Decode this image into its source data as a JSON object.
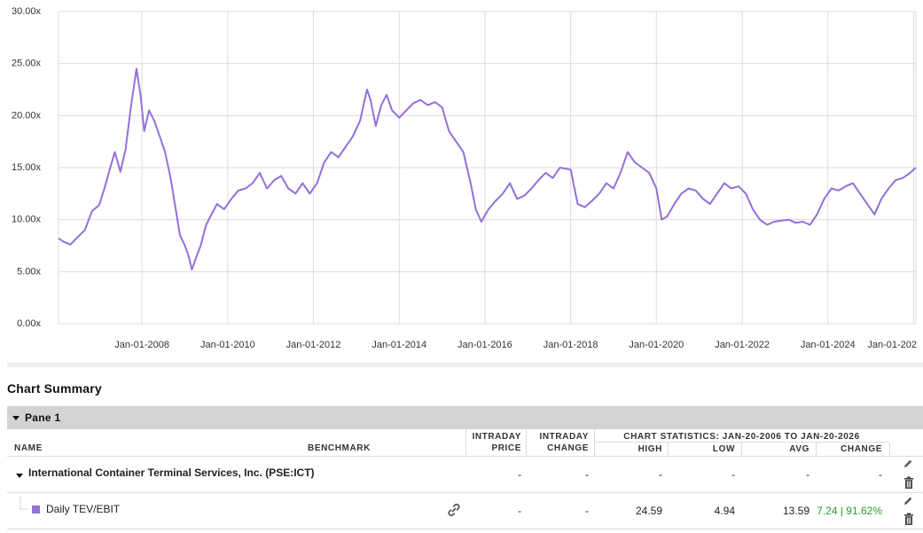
{
  "chart_data": {
    "type": "line",
    "y_ticks": [
      "0.00x",
      "5.00x",
      "10.00x",
      "15.00x",
      "20.00x",
      "25.00x",
      "30.00x"
    ],
    "ylim": [
      0,
      30
    ],
    "x_ticks": [
      "Jan-01-2008",
      "Jan-01-2010",
      "Jan-01-2012",
      "Jan-01-2014",
      "Jan-01-2016",
      "Jan-01-2018",
      "Jan-01-2020",
      "Jan-01-2022",
      "Jan-01-2024",
      "Jan-01-202"
    ],
    "xlim": [
      "2006-01-20",
      "2026-01-20"
    ],
    "grid": true,
    "series": [
      {
        "color": "#9370db",
        "points": [
          [
            "2006-01-20",
            8.2
          ],
          [
            "2006-03-01",
            7.9
          ],
          [
            "2006-05-01",
            7.6
          ],
          [
            "2006-07-01",
            8.3
          ],
          [
            "2006-09-01",
            9.0
          ],
          [
            "2006-11-01",
            10.8
          ],
          [
            "2007-01-01",
            11.4
          ],
          [
            "2007-02-15",
            13.0
          ],
          [
            "2007-04-01",
            14.8
          ],
          [
            "2007-05-15",
            16.5
          ],
          [
            "2007-07-01",
            14.6
          ],
          [
            "2007-08-15",
            16.8
          ],
          [
            "2007-10-01",
            21.0
          ],
          [
            "2007-11-15",
            24.5
          ],
          [
            "2007-12-20",
            22.0
          ],
          [
            "2008-01-20",
            18.5
          ],
          [
            "2008-03-01",
            20.5
          ],
          [
            "2008-04-15",
            19.5
          ],
          [
            "2008-06-01",
            18.0
          ],
          [
            "2008-07-15",
            16.5
          ],
          [
            "2008-09-01",
            14.0
          ],
          [
            "2008-10-15",
            11.0
          ],
          [
            "2008-11-20",
            8.5
          ],
          [
            "2009-01-01",
            7.5
          ],
          [
            "2009-02-01",
            6.5
          ],
          [
            "2009-03-01",
            5.2
          ],
          [
            "2009-04-01",
            6.2
          ],
          [
            "2009-05-15",
            7.5
          ],
          [
            "2009-07-01",
            9.5
          ],
          [
            "2009-08-15",
            10.5
          ],
          [
            "2009-10-01",
            11.5
          ],
          [
            "2009-12-01",
            11.0
          ],
          [
            "2010-02-01",
            12.0
          ],
          [
            "2010-04-01",
            12.8
          ],
          [
            "2010-06-01",
            13.0
          ],
          [
            "2010-08-01",
            13.5
          ],
          [
            "2010-10-01",
            14.5
          ],
          [
            "2010-12-01",
            13.0
          ],
          [
            "2011-02-01",
            13.8
          ],
          [
            "2011-04-01",
            14.2
          ],
          [
            "2011-06-01",
            13.0
          ],
          [
            "2011-08-01",
            12.5
          ],
          [
            "2011-10-01",
            13.5
          ],
          [
            "2011-12-01",
            12.5
          ],
          [
            "2012-02-01",
            13.5
          ],
          [
            "2012-04-01",
            15.5
          ],
          [
            "2012-06-01",
            16.5
          ],
          [
            "2012-08-01",
            16.0
          ],
          [
            "2012-10-01",
            17.0
          ],
          [
            "2012-12-01",
            18.0
          ],
          [
            "2013-02-01",
            19.5
          ],
          [
            "2013-04-01",
            22.5
          ],
          [
            "2013-05-01",
            21.5
          ],
          [
            "2013-06-15",
            19.0
          ],
          [
            "2013-08-01",
            21.0
          ],
          [
            "2013-09-15",
            22.0
          ],
          [
            "2013-11-01",
            20.5
          ],
          [
            "2014-01-01",
            19.8
          ],
          [
            "2014-03-01",
            20.5
          ],
          [
            "2014-05-01",
            21.2
          ],
          [
            "2014-07-01",
            21.5
          ],
          [
            "2014-09-01",
            21.0
          ],
          [
            "2014-11-01",
            21.3
          ],
          [
            "2015-01-01",
            20.8
          ],
          [
            "2015-03-01",
            18.5
          ],
          [
            "2015-05-01",
            17.5
          ],
          [
            "2015-07-01",
            16.5
          ],
          [
            "2015-09-01",
            13.5
          ],
          [
            "2015-10-15",
            11.0
          ],
          [
            "2015-12-01",
            9.8
          ],
          [
            "2016-02-01",
            11.0
          ],
          [
            "2016-04-01",
            11.8
          ],
          [
            "2016-06-01",
            12.5
          ],
          [
            "2016-08-01",
            13.5
          ],
          [
            "2016-10-01",
            12.0
          ],
          [
            "2016-12-01",
            12.3
          ],
          [
            "2017-02-01",
            13.0
          ],
          [
            "2017-04-01",
            13.8
          ],
          [
            "2017-06-01",
            14.5
          ],
          [
            "2017-08-01",
            14.0
          ],
          [
            "2017-10-01",
            15.0
          ],
          [
            "2018-01-01",
            14.8
          ],
          [
            "2018-03-01",
            11.5
          ],
          [
            "2018-05-01",
            11.2
          ],
          [
            "2018-07-01",
            11.8
          ],
          [
            "2018-09-01",
            12.5
          ],
          [
            "2018-11-01",
            13.5
          ],
          [
            "2019-01-01",
            13.0
          ],
          [
            "2019-03-01",
            14.5
          ],
          [
            "2019-05-01",
            16.5
          ],
          [
            "2019-07-01",
            15.5
          ],
          [
            "2019-09-01",
            15.0
          ],
          [
            "2019-11-01",
            14.5
          ],
          [
            "2020-01-01",
            13.0
          ],
          [
            "2020-02-15",
            10.0
          ],
          [
            "2020-04-01",
            10.3
          ],
          [
            "2020-06-01",
            11.5
          ],
          [
            "2020-08-01",
            12.5
          ],
          [
            "2020-10-01",
            13.0
          ],
          [
            "2020-12-01",
            12.8
          ],
          [
            "2021-02-01",
            12.0
          ],
          [
            "2021-04-01",
            11.5
          ],
          [
            "2021-06-01",
            12.5
          ],
          [
            "2021-08-01",
            13.5
          ],
          [
            "2021-10-01",
            13.0
          ],
          [
            "2021-12-01",
            13.2
          ],
          [
            "2022-02-01",
            12.5
          ],
          [
            "2022-04-01",
            11.0
          ],
          [
            "2022-06-01",
            10.0
          ],
          [
            "2022-08-01",
            9.5
          ],
          [
            "2022-10-01",
            9.8
          ],
          [
            "2022-12-01",
            9.9
          ],
          [
            "2023-02-01",
            10.0
          ],
          [
            "2023-04-01",
            9.7
          ],
          [
            "2023-06-01",
            9.8
          ],
          [
            "2023-08-01",
            9.5
          ],
          [
            "2023-10-01",
            10.5
          ],
          [
            "2023-12-01",
            12.0
          ],
          [
            "2024-02-01",
            13.0
          ],
          [
            "2024-04-01",
            12.8
          ],
          [
            "2024-06-01",
            13.2
          ],
          [
            "2024-08-01",
            13.5
          ],
          [
            "2024-10-01",
            12.5
          ],
          [
            "2024-12-01",
            11.5
          ],
          [
            "2025-02-01",
            10.5
          ],
          [
            "2025-04-01",
            12.0
          ],
          [
            "2025-06-01",
            13.0
          ],
          [
            "2025-08-01",
            13.8
          ],
          [
            "2025-10-01",
            14.0
          ],
          [
            "2025-12-01",
            14.5
          ],
          [
            "2026-01-20",
            15.0
          ]
        ]
      }
    ]
  },
  "summary": {
    "title": "Chart Summary",
    "pane_label": "Pane 1",
    "headers": {
      "name": "NAME",
      "benchmark": "BENCHMARK",
      "intraday_price_1": "INTRADAY",
      "intraday_price_2": "PRICE",
      "intraday_change_1": "INTRADAY",
      "intraday_change_2": "CHANGE",
      "stats_group": "CHART STATISTICS: JAN-20-2006 TO JAN-20-2026",
      "high": "HIGH",
      "low": "LOW",
      "avg": "AVG",
      "change": "CHANGE"
    },
    "company_row": {
      "name": "International Container Terminal Services, Inc. (PSE:ICT)",
      "intraday_price": "-",
      "intraday_change": "-",
      "high": "-",
      "low": "-",
      "avg": "-",
      "change": "-"
    },
    "series_row": {
      "name": "Daily TEV/EBIT",
      "swatch_color": "#9370db",
      "intraday_price": "-",
      "intraday_change": "-",
      "high": "24.59",
      "low": "4.94",
      "avg": "13.59",
      "change": "7.24 | 91.62%"
    }
  }
}
